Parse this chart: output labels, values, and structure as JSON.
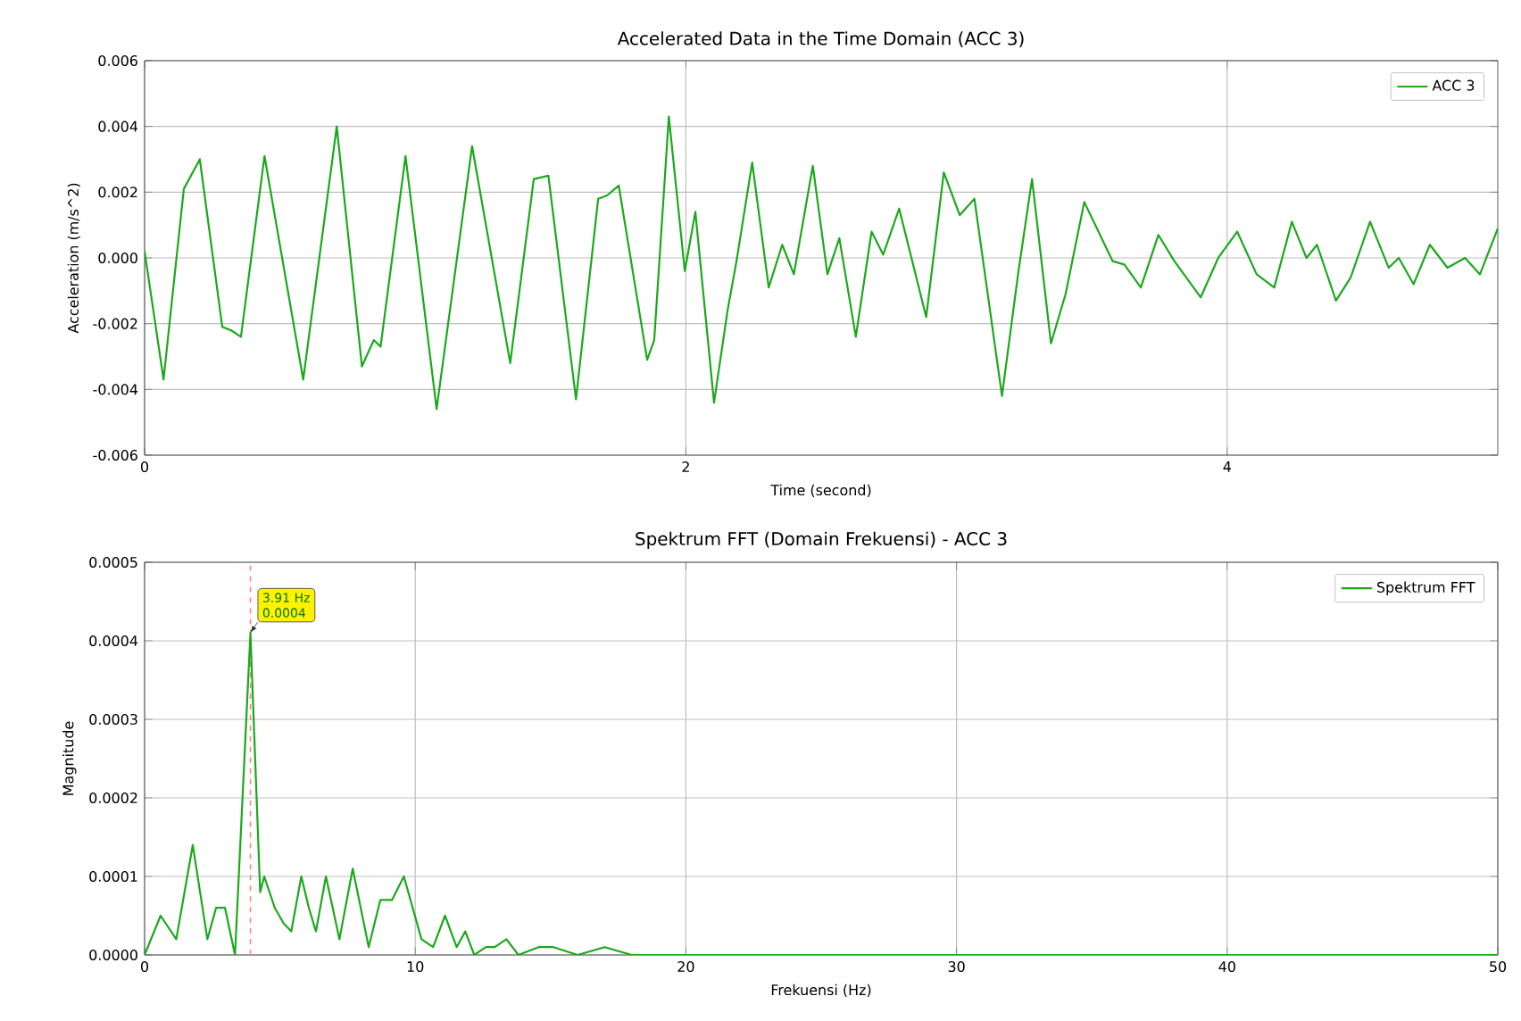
{
  "chart_data": [
    {
      "type": "line",
      "title": "Accelerated Data in the Time Domain (ACC 3)",
      "xlabel": "Time (second)",
      "ylabel": "Acceleration (m/s^2)",
      "xlim": [
        0,
        5
      ],
      "xticks": [
        0,
        2,
        4
      ],
      "ylim": [
        -0.006,
        0.006
      ],
      "yticks": [
        -0.006,
        -0.004,
        -0.002,
        {
          "value": 0,
          "label": "0.000"
        },
        0.002,
        0.004,
        0.006
      ],
      "grid": true,
      "legend": "top right",
      "series": [
        {
          "name": "ACC 3",
          "color": "#1ca81c",
          "x": [
            0,
            0.07,
            0.145,
            0.204,
            0.287,
            0.319,
            0.356,
            0.443,
            0.586,
            0.71,
            0.803,
            0.847,
            0.872,
            0.964,
            1.079,
            1.21,
            1.351,
            1.438,
            1.492,
            1.594,
            1.676,
            1.709,
            1.752,
            1.857,
            1.883,
            1.937,
            1.996,
            2.035,
            2.104,
            2.154,
            2.187,
            2.245,
            2.306,
            2.356,
            2.399,
            2.469,
            2.523,
            2.567,
            2.628,
            2.686,
            2.729,
            2.788,
            2.888,
            2.953,
            3.012,
            3.066,
            3.168,
            3.229,
            3.279,
            3.349,
            3.403,
            3.472,
            3.577,
            3.62,
            3.681,
            3.746,
            3.805,
            3.902,
            3.967,
            4.037,
            4.109,
            4.174,
            4.239,
            4.293,
            4.332,
            4.402,
            4.456,
            4.528,
            4.597,
            4.634,
            4.689,
            4.749,
            4.814,
            4.879,
            4.934,
            5.0
          ],
          "values": [
            0.0002,
            -0.0037,
            0.0021,
            0.003,
            -0.0021,
            -0.0022,
            -0.0024,
            0.0031,
            -0.0037,
            0.004,
            -0.0033,
            -0.0025,
            -0.0027,
            0.0031,
            -0.0046,
            0.0034,
            -0.0032,
            0.0024,
            0.0025,
            -0.0043,
            0.0018,
            0.0019,
            0.0022,
            -0.0031,
            -0.0025,
            0.0043,
            -0.0004,
            0.0014,
            -0.0044,
            -0.0016,
            -0.0001,
            0.0029,
            -0.0009,
            0.0004,
            -0.0005,
            0.0028,
            -0.0005,
            0.0006,
            -0.0024,
            0.0008,
            0.0001,
            0.0015,
            -0.0018,
            0.0026,
            0.0013,
            0.0018,
            -0.0042,
            -0.0004,
            0.0024,
            -0.0026,
            -0.0011,
            0.0017,
            -0.0001,
            -0.0002,
            -0.0009,
            0.0007,
            -0.0001,
            -0.0012,
            0.0,
            0.0008,
            -0.0005,
            -0.0009,
            0.0011,
            0.0,
            0.0004,
            -0.0013,
            -0.0006,
            0.0011,
            -0.0003,
            0.0,
            -0.0008,
            0.0004,
            -0.0003,
            0.0,
            -0.0005,
            0.0009
          ]
        }
      ]
    },
    {
      "type": "line",
      "title": "Spektrum FFT (Domain Frekuensi) - ACC 3",
      "xlabel": "Frekuensi (Hz)",
      "ylabel": "Magnitude",
      "xlim": [
        0,
        50
      ],
      "xticks": [
        0,
        10,
        20,
        30,
        40,
        50
      ],
      "ylim": [
        0,
        0.0005
      ],
      "yticks": [
        {
          "value": 0,
          "label": "0.0000"
        },
        0.0001,
        0.0002,
        0.0003,
        0.0004,
        0.0005
      ],
      "grid": true,
      "legend": "top right",
      "ref_lines": [
        {
          "axis": "x",
          "value": 3.91,
          "color": "#ff8080",
          "line_style": "dashed"
        }
      ],
      "annotations": [
        {
          "text": "3.91 Hz 0.0004",
          "x": 3.91,
          "y": 0.00041
        }
      ],
      "series": [
        {
          "name": "Spektrum FFT",
          "color": "#1ca81c",
          "x": [
            0,
            0.59,
            1.17,
            1.78,
            2.32,
            2.64,
            2.97,
            3.34,
            3.91,
            4.27,
            4.42,
            4.81,
            5.14,
            5.42,
            5.79,
            6.07,
            6.33,
            6.7,
            7.2,
            7.69,
            8.28,
            8.71,
            9.14,
            9.58,
            10.23,
            10.66,
            11.1,
            11.53,
            11.85,
            12.18,
            12.61,
            12.94,
            13.37,
            13.81,
            14.56,
            15.1,
            16,
            17,
            18,
            20,
            25,
            30,
            40,
            50
          ],
          "values": [
            0,
            5e-05,
            2e-05,
            0.00014,
            2e-05,
            6e-05,
            6e-05,
            0,
            0.00041,
            8e-05,
            0.0001,
            6e-05,
            4e-05,
            3e-05,
            0.0001,
            6e-05,
            3e-05,
            0.0001,
            2e-05,
            0.00011,
            1e-05,
            7e-05,
            7e-05,
            0.0001,
            2e-05,
            1e-05,
            5e-05,
            1e-05,
            3e-05,
            0,
            1e-05,
            1e-05,
            2e-05,
            0,
            1e-05,
            1e-05,
            0,
            1e-05,
            0,
            0,
            0,
            0,
            0,
            0
          ]
        }
      ]
    }
  ]
}
